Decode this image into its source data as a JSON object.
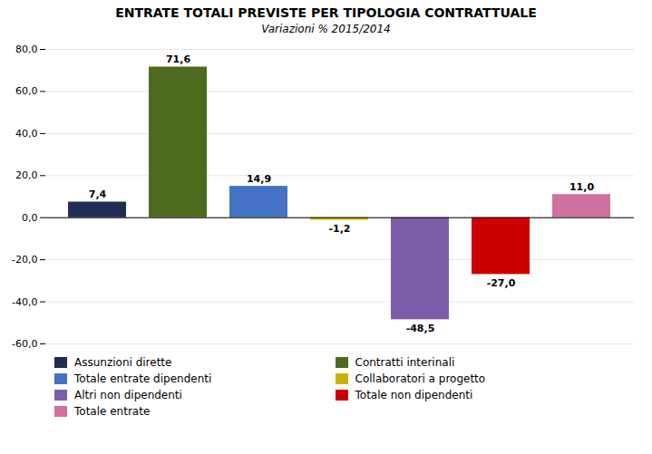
{
  "chart_data": {
    "type": "bar",
    "title": "ENTRATE TOTALI PREVISTE PER TIPOLOGIA CONTRATTUALE",
    "subtitle": "Variazioni % 2015/2014",
    "categories": [
      "Assunzioni dirette",
      "Contratti interinali",
      "Totale entrate dipendenti",
      "Collaboratori a progetto",
      "Altri non dipendenti",
      "Totale non dipendenti",
      "Totale entrate"
    ],
    "values": [
      7.4,
      71.6,
      14.9,
      -1.2,
      -48.5,
      -27.0,
      11.0
    ],
    "value_labels": [
      "7,4",
      "71,6",
      "14,9",
      "-1,2",
      "-48,5",
      "-27,0",
      "11,0"
    ],
    "colors": [
      "#1F2D54",
      "#4D6B1E",
      "#4472C4",
      "#C8B400",
      "#7B5EA7",
      "#CC0000",
      "#D070A0"
    ],
    "ylim": [
      -60,
      80
    ],
    "yticks": [
      {
        "value": -60,
        "label": "-60,0"
      },
      {
        "value": -40,
        "label": "-40,0"
      },
      {
        "value": -20,
        "label": "-20,0"
      },
      {
        "value": 0,
        "label": "0,0"
      },
      {
        "value": 20,
        "label": "20,0"
      },
      {
        "value": 40,
        "label": "40,0"
      },
      {
        "value": 60,
        "label": "60,0"
      },
      {
        "value": 80,
        "label": "80,0"
      }
    ],
    "grid": true,
    "data_labels": true,
    "tick_labels": "y",
    "legend": "bottom"
  }
}
